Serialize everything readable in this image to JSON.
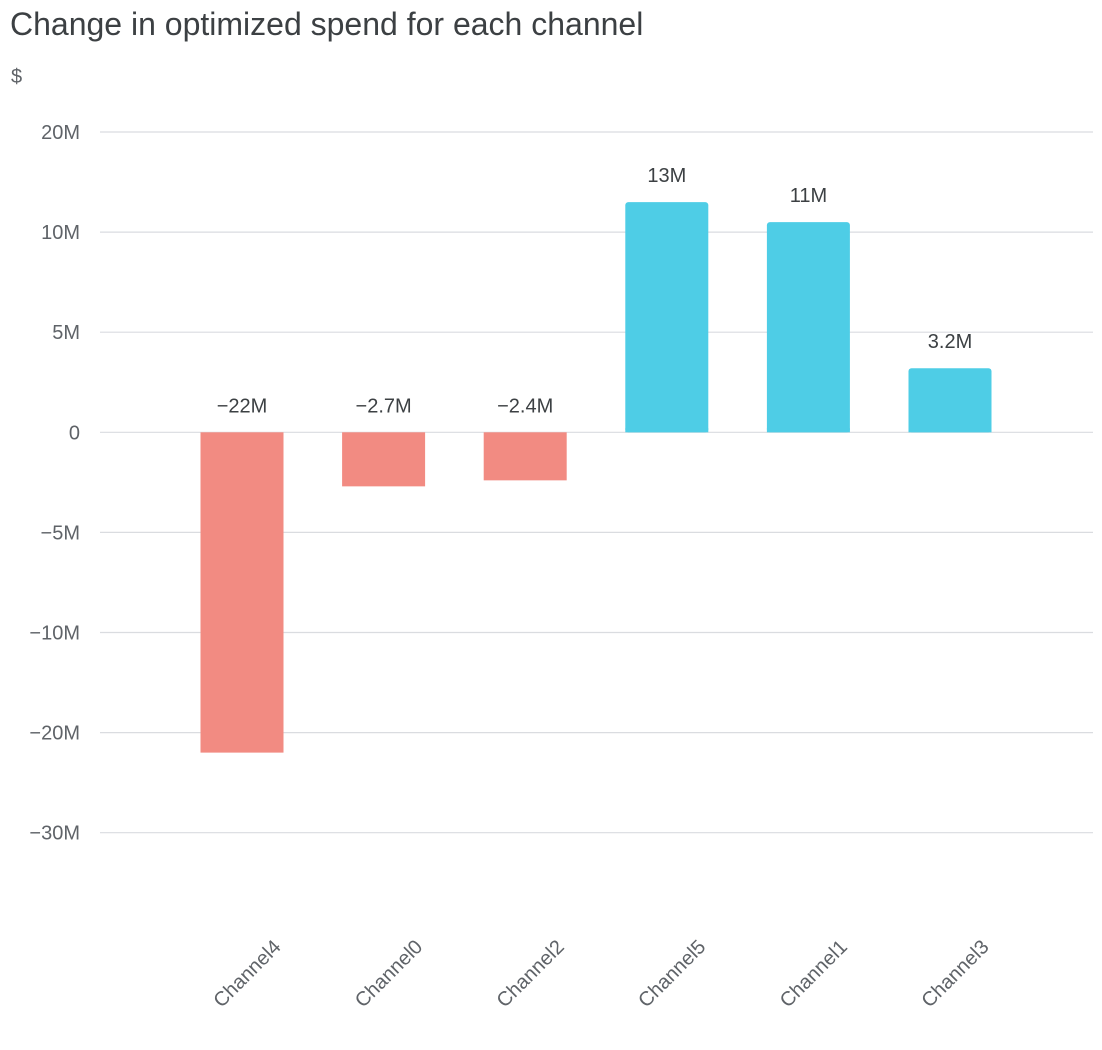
{
  "chart_data": {
    "type": "bar",
    "title": "Change in optimized spend for each channel",
    "ylabel": "$",
    "xlabel": "",
    "categories": [
      "Channel4",
      "Channel0",
      "Channel2",
      "Channel5",
      "Channel1",
      "Channel3"
    ],
    "values": [
      -22000000,
      -2700000,
      -2400000,
      13000000,
      11000000,
      3200000
    ],
    "data_labels": [
      "−22M",
      "−2.7M",
      "−2.4M",
      "13M",
      "11M",
      "3.2M"
    ],
    "y_ticks": [
      20000000,
      10000000,
      5000000,
      0,
      -5000000,
      -10000000,
      -20000000,
      -30000000
    ],
    "y_tick_labels": [
      "20M",
      "10M",
      "5M",
      "0",
      "−5M",
      "−10M",
      "−20M",
      "−30M"
    ],
    "grid": true,
    "colors": {
      "positive": "#4ecde6",
      "negative": "#f28b82",
      "grid": "#dadce0",
      "text": "#3c4043",
      "axis_text": "#5f6368"
    }
  }
}
